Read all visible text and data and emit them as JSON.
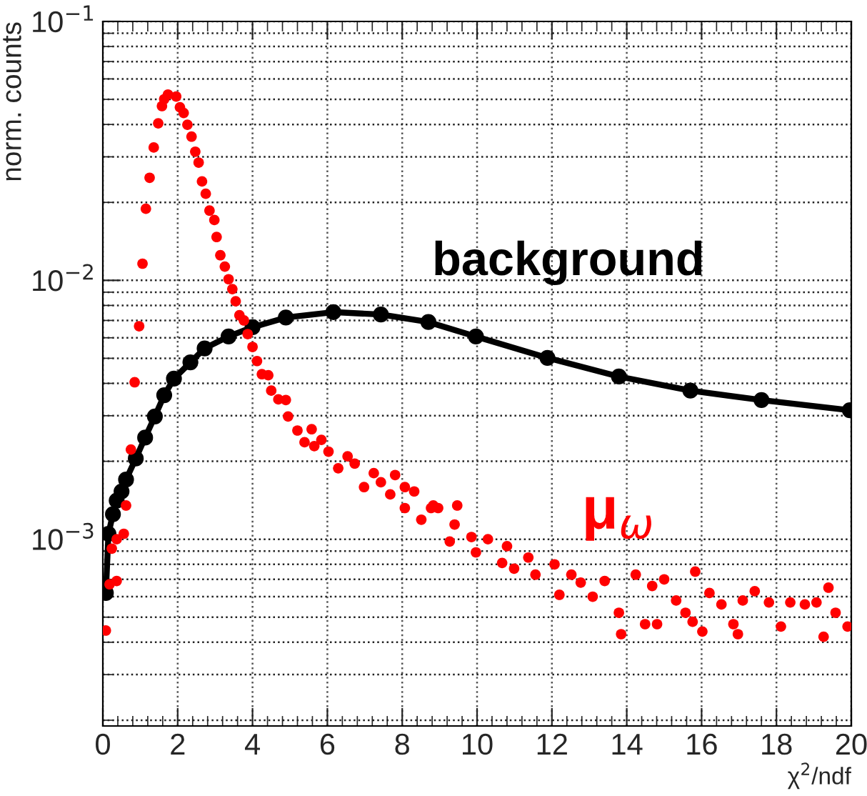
{
  "chart_data": {
    "type": "scatter",
    "xlabel": "χ$^{2}$/ndf",
    "ylabel": "norm. counts",
    "log": "y",
    "grid": true,
    "marker": "circle",
    "xlim": [
      0,
      20
    ],
    "xticks": [
      0,
      2,
      4,
      6,
      8,
      10,
      12,
      14,
      16,
      18,
      20
    ],
    "ylim": [
      0.00019,
      0.1
    ],
    "yticks": [
      {
        "value": 0.001,
        "label": "10$^{−3}$"
      },
      {
        "value": 0.01,
        "label": "10$^{−2}$"
      },
      {
        "value": 0.1,
        "label": "10$^{−1}$"
      }
    ],
    "series": [
      {
        "name": "background",
        "color": "#000000",
        "type": "line",
        "x": [
          0.08,
          0.15,
          0.27,
          0.37,
          0.5,
          0.62,
          0.88,
          1.13,
          1.39,
          1.64,
          1.9,
          2.34,
          2.72,
          3.36,
          4.0,
          4.89,
          6.16,
          7.43,
          8.7,
          9.97,
          11.88,
          13.79,
          15.7,
          17.6,
          19.96
        ],
        "values": [
          0.00062,
          0.00105,
          0.00125,
          0.00141,
          0.00153,
          0.0017,
          0.00205,
          0.00247,
          0.00298,
          0.0036,
          0.00417,
          0.00482,
          0.00546,
          0.00607,
          0.00659,
          0.00718,
          0.00754,
          0.00738,
          0.0069,
          0.00607,
          0.00502,
          0.00425,
          0.00375,
          0.00345,
          0.00315
        ]
      },
      {
        "name": "μ$_{ω}$",
        "color": "#ff0000",
        "x": [
          0.08,
          0.18,
          0.24,
          0.37,
          0.37,
          0.56,
          0.62,
          0.75,
          0.85,
          0.97,
          1.06,
          1.15,
          1.25,
          1.36,
          1.48,
          1.58,
          1.64,
          1.74,
          1.96,
          2.06,
          2.16,
          2.26,
          2.37,
          2.47,
          2.56,
          2.65,
          2.75,
          2.85,
          2.98,
          3.04,
          3.14,
          3.26,
          3.36,
          3.46,
          3.55,
          3.65,
          3.77,
          3.87,
          4.0,
          4.12,
          4.25,
          4.42,
          4.5,
          4.69,
          4.89,
          4.95,
          5.2,
          5.39,
          5.58,
          5.65,
          5.84,
          6.03,
          6.29,
          6.54,
          6.73,
          6.98,
          7.24,
          7.43,
          7.68,
          7.81,
          8.07,
          8.07,
          8.32,
          8.51,
          8.77,
          8.83,
          8.96,
          9.27,
          9.4,
          9.47,
          9.85,
          9.97,
          10.29,
          10.67,
          10.8,
          10.99,
          11.37,
          11.56,
          12.07,
          12.2,
          12.52,
          12.77,
          13.09,
          13.41,
          13.79,
          13.85,
          14.24,
          14.49,
          14.68,
          14.81,
          15.0,
          15.32,
          15.57,
          15.76,
          15.83,
          16.02,
          16.21,
          16.53,
          16.85,
          16.97,
          17.1,
          17.42,
          17.8,
          18.12,
          18.37,
          18.76,
          19.07,
          19.26,
          19.39,
          19.58,
          19.9
        ],
        "values": [
          0.000444,
          0.00067,
          0.00092,
          0.00069,
          0.001,
          0.00105,
          0.00135,
          0.00222,
          0.00404,
          0.00665,
          0.0116,
          0.0189,
          0.0249,
          0.0326,
          0.0404,
          0.0471,
          0.0501,
          0.0522,
          0.0513,
          0.0466,
          0.0443,
          0.0399,
          0.0359,
          0.0314,
          0.0285,
          0.0241,
          0.0216,
          0.0186,
          0.0171,
          0.0147,
          0.0125,
          0.0113,
          0.0101,
          0.00925,
          0.0083,
          0.00733,
          0.007,
          0.0062,
          0.00553,
          0.00488,
          0.00434,
          0.0043,
          0.00375,
          0.00347,
          0.00345,
          0.00298,
          0.00263,
          0.00237,
          0.00266,
          0.00229,
          0.00242,
          0.00218,
          0.00188,
          0.00209,
          0.00196,
          0.00159,
          0.0018,
          0.00166,
          0.00149,
          0.00177,
          0.00159,
          0.00132,
          0.00153,
          0.00119,
          0.00132,
          0.00135,
          0.00132,
          0.00098,
          0.00114,
          0.00135,
          0.00102,
          0.00089,
          0.001,
          0.00081,
          0.00094,
          0.00077,
          0.00085,
          0.00073,
          0.0008,
          0.00061,
          0.00073,
          0.00068,
          0.0006,
          0.00069,
          0.00052,
          0.00043,
          0.00073,
          0.00047,
          0.00066,
          0.00047,
          0.0007,
          0.00058,
          0.00052,
          0.00048,
          0.00075,
          0.00044,
          0.00062,
          0.00056,
          0.00047,
          0.00043,
          0.00058,
          0.00063,
          0.00057,
          0.00046,
          0.00057,
          0.00056,
          0.00057,
          0.00042,
          0.00065,
          0.00052,
          0.00046
        ]
      }
    ]
  }
}
